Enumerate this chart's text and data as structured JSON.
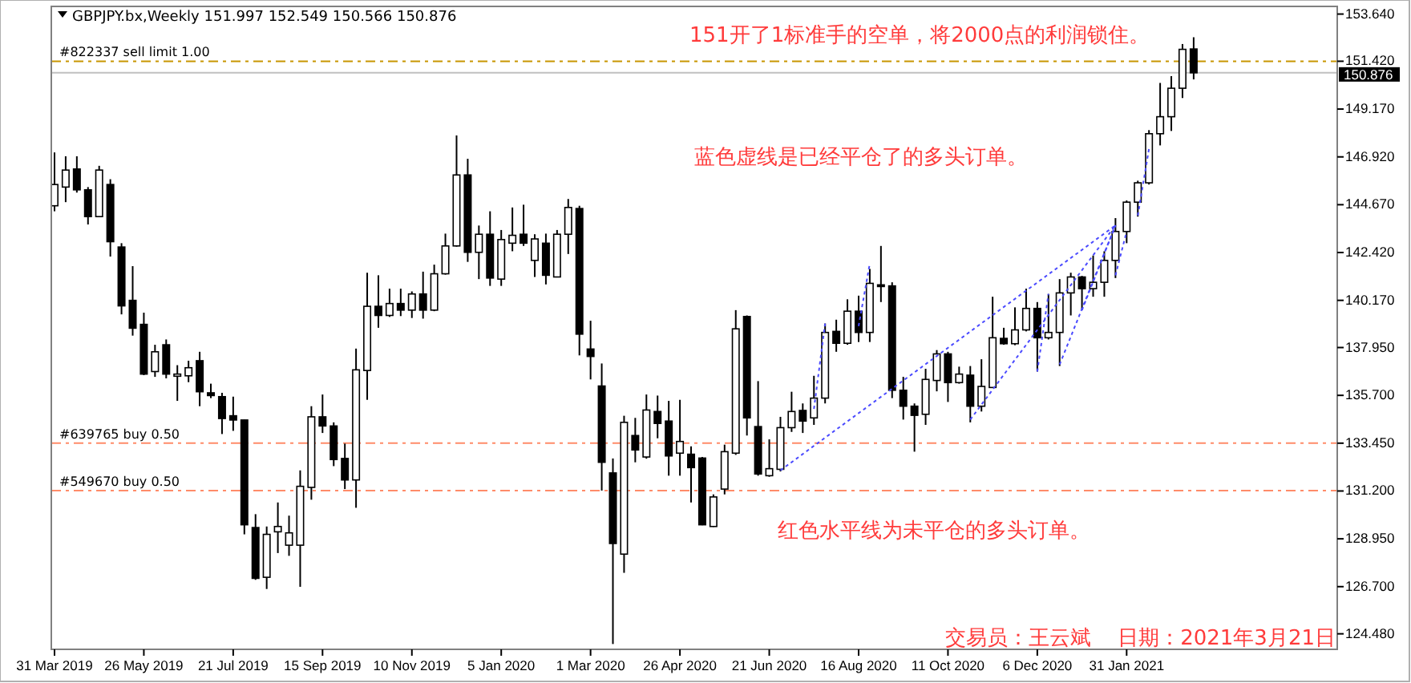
{
  "chart_data": {
    "type": "candlestick",
    "title": "GBPJPY.bx,Weekly 151.997 152.549 150.566 150.876",
    "annotations": [
      "151开了1标准手的空单，将2000点的利润锁住。",
      "蓝色虚线是已经平仓了的多头订单。",
      "红色水平线为未平仓的多头订单。",
      "交易员：王云斌    日期：2021年3月21日"
    ],
    "x": [
      "2019-03-31",
      "2019-04-07",
      "2019-04-14",
      "2019-04-21",
      "2019-04-28",
      "2019-05-05",
      "2019-05-12",
      "2019-05-19",
      "2019-05-26",
      "2019-06-02",
      "2019-06-09",
      "2019-06-16",
      "2019-06-23",
      "2019-06-30",
      "2019-07-07",
      "2019-07-14",
      "2019-07-21",
      "2019-07-28",
      "2019-08-04",
      "2019-08-11",
      "2019-08-18",
      "2019-08-25",
      "2019-09-01",
      "2019-09-08",
      "2019-09-15",
      "2019-09-22",
      "2019-09-29",
      "2019-10-06",
      "2019-10-13",
      "2019-10-20",
      "2019-10-27",
      "2019-11-03",
      "2019-11-10",
      "2019-11-17",
      "2019-11-24",
      "2019-12-01",
      "2019-12-08",
      "2019-12-15",
      "2019-12-22",
      "2019-12-29",
      "2020-01-05",
      "2020-01-12",
      "2020-01-19",
      "2020-01-26",
      "2020-02-02",
      "2020-02-09",
      "2020-02-16",
      "2020-02-23",
      "2020-03-01",
      "2020-03-08",
      "2020-03-15",
      "2020-03-22",
      "2020-03-29",
      "2020-04-05",
      "2020-04-12",
      "2020-04-19",
      "2020-04-26",
      "2020-05-03",
      "2020-05-10",
      "2020-05-17",
      "2020-05-24",
      "2020-05-31",
      "2020-06-07",
      "2020-06-14",
      "2020-06-21",
      "2020-06-28",
      "2020-07-05",
      "2020-07-12",
      "2020-07-19",
      "2020-07-26",
      "2020-08-02",
      "2020-08-09",
      "2020-08-16",
      "2020-08-23",
      "2020-08-30",
      "2020-09-06",
      "2020-09-13",
      "2020-09-20",
      "2020-09-27",
      "2020-10-04",
      "2020-10-11",
      "2020-10-18",
      "2020-10-25",
      "2020-11-01",
      "2020-11-08",
      "2020-11-15",
      "2020-11-22",
      "2020-11-29",
      "2020-12-06",
      "2020-12-13",
      "2020-12-20",
      "2020-12-27",
      "2021-01-03",
      "2021-01-10",
      "2021-01-17",
      "2021-01-24",
      "2021-01-31",
      "2021-02-07",
      "2021-02-14",
      "2021-02-21",
      "2021-02-28",
      "2021-03-07",
      "2021-03-14"
    ],
    "series": [
      {
        "ohlc": [
          [
            144.62,
            147.13,
            144.36,
            145.62
          ],
          [
            145.5,
            146.95,
            144.79,
            146.3
          ],
          [
            146.35,
            146.95,
            145.24,
            145.37
          ],
          [
            145.37,
            145.5,
            143.74,
            144.11
          ],
          [
            144.11,
            146.5,
            144.08,
            146.3
          ],
          [
            145.62,
            145.87,
            142.23,
            142.93
          ],
          [
            142.68,
            142.86,
            139.51,
            139.91
          ],
          [
            140.17,
            141.78,
            138.51,
            138.86
          ],
          [
            139.04,
            139.59,
            136.65,
            136.7
          ],
          [
            136.82,
            138.08,
            136.57,
            137.75
          ],
          [
            138.08,
            138.33,
            136.5,
            136.7
          ],
          [
            136.6,
            137.12,
            135.44,
            136.7
          ],
          [
            136.62,
            137.33,
            136.32,
            137.0
          ],
          [
            137.33,
            137.75,
            135.19,
            135.87
          ],
          [
            135.82,
            136.25,
            135.57,
            135.69
          ],
          [
            135.64,
            135.82,
            133.88,
            134.61
          ],
          [
            134.74,
            135.64,
            134.03,
            134.54
          ],
          [
            134.54,
            134.55,
            129.16,
            129.61
          ],
          [
            129.48,
            130.11,
            127.02,
            127.09
          ],
          [
            127.14,
            129.53,
            126.59,
            129.16
          ],
          [
            129.28,
            130.66,
            128.28,
            129.53
          ],
          [
            128.65,
            130.04,
            128.15,
            129.23
          ],
          [
            128.65,
            132.17,
            126.69,
            131.42
          ],
          [
            131.37,
            135.19,
            130.79,
            134.69
          ],
          [
            134.69,
            135.74,
            133.93,
            134.26
          ],
          [
            134.26,
            134.43,
            132.37,
            132.68
          ],
          [
            132.73,
            133.43,
            131.29,
            131.72
          ],
          [
            131.72,
            137.9,
            130.41,
            136.9
          ],
          [
            136.87,
            141.47,
            135.49,
            139.89
          ],
          [
            139.89,
            141.35,
            138.88,
            139.46
          ],
          [
            139.46,
            140.72,
            139.39,
            140.02
          ],
          [
            140.02,
            140.72,
            139.43,
            139.71
          ],
          [
            139.71,
            140.59,
            139.34,
            140.47
          ],
          [
            140.47,
            141.52,
            139.31,
            139.71
          ],
          [
            139.71,
            141.85,
            139.66,
            141.42
          ],
          [
            141.42,
            143.31,
            141.38,
            142.73
          ],
          [
            142.73,
            147.93,
            142.7,
            146.07
          ],
          [
            146.07,
            146.83,
            141.98,
            142.43
          ],
          [
            142.43,
            143.69,
            141.17,
            143.28
          ],
          [
            143.28,
            144.36,
            140.85,
            141.22
          ],
          [
            141.17,
            143.48,
            140.85,
            143.03
          ],
          [
            142.86,
            144.54,
            142.48,
            143.23
          ],
          [
            143.28,
            144.67,
            142.73,
            142.86
          ],
          [
            142.05,
            143.28,
            141.27,
            143.06
          ],
          [
            142.86,
            143.31,
            140.92,
            141.35
          ],
          [
            141.27,
            143.48,
            141.25,
            143.28
          ],
          [
            143.28,
            144.94,
            142.35,
            144.54
          ],
          [
            144.49,
            144.62,
            137.58,
            138.58
          ],
          [
            137.88,
            139.21,
            136.45,
            137.53
          ],
          [
            136.14,
            137.2,
            131.22,
            132.55
          ],
          [
            132.05,
            132.73,
            124.0,
            128.73
          ],
          [
            128.23,
            134.74,
            127.35,
            134.43
          ],
          [
            133.81,
            134.64,
            132.55,
            133.13
          ],
          [
            132.8,
            135.74,
            132.72,
            135.01
          ],
          [
            134.94,
            135.69,
            133.68,
            134.38
          ],
          [
            134.49,
            135.44,
            131.92,
            132.85
          ],
          [
            132.98,
            135.49,
            131.92,
            133.53
          ],
          [
            132.93,
            133.3,
            130.66,
            132.3
          ],
          [
            132.75,
            132.8,
            129.59,
            129.61
          ],
          [
            129.53,
            131.04,
            129.51,
            130.92
          ],
          [
            131.29,
            133.38,
            131.04,
            133.05
          ],
          [
            132.98,
            139.71,
            132.9,
            138.83
          ],
          [
            139.41,
            139.46,
            133.81,
            134.64
          ],
          [
            134.23,
            136.37,
            131.92,
            132.0
          ],
          [
            131.92,
            133.63,
            131.87,
            132.25
          ],
          [
            132.22,
            134.69,
            132.12,
            134.18
          ],
          [
            134.18,
            135.87,
            133.98,
            134.94
          ],
          [
            134.99,
            135.32,
            133.93,
            134.49
          ],
          [
            134.64,
            136.62,
            134.31,
            135.57
          ],
          [
            135.57,
            139.08,
            135.32,
            138.66
          ],
          [
            138.71,
            139.26,
            137.75,
            138.15
          ],
          [
            138.15,
            140.22,
            138.08,
            139.66
          ],
          [
            139.66,
            140.39,
            138.21,
            138.66
          ],
          [
            138.66,
            141.65,
            138.21,
            140.97
          ],
          [
            140.9,
            142.73,
            140.09,
            140.82
          ],
          [
            140.85,
            141.02,
            135.57,
            135.94
          ],
          [
            135.94,
            136.57,
            134.56,
            135.19
          ],
          [
            135.19,
            135.32,
            133.05,
            134.76
          ],
          [
            134.81,
            136.95,
            134.31,
            136.45
          ],
          [
            136.4,
            137.83,
            135.89,
            137.65
          ],
          [
            137.65,
            137.75,
            135.39,
            136.3
          ],
          [
            136.3,
            137.05,
            136.25,
            136.7
          ],
          [
            136.65,
            137.08,
            134.43,
            135.19
          ],
          [
            135.19,
            137.4,
            134.94,
            136.12
          ],
          [
            136.07,
            140.34,
            136.05,
            138.41
          ],
          [
            138.38,
            138.88,
            138.08,
            138.13
          ],
          [
            138.13,
            139.84,
            138.06,
            138.78
          ],
          [
            138.78,
            140.72,
            138.71,
            139.79
          ],
          [
            139.79,
            140.09,
            136.82,
            138.41
          ],
          [
            138.41,
            140.47,
            138.33,
            138.66
          ],
          [
            138.66,
            141.17,
            137.08,
            140.52
          ],
          [
            140.52,
            141.47,
            139.46,
            141.27
          ],
          [
            141.27,
            141.32,
            139.71,
            140.72
          ],
          [
            140.72,
            142.28,
            140.34,
            141.02
          ],
          [
            141.02,
            142.48,
            140.34,
            142.05
          ],
          [
            142.05,
            144.04,
            141.22,
            143.41
          ],
          [
            143.41,
            144.87,
            142.86,
            144.79
          ],
          [
            144.79,
            145.8,
            144.11,
            145.7
          ],
          [
            145.7,
            148.18,
            145.62,
            148.01
          ],
          [
            148.01,
            150.4,
            147.46,
            148.81
          ],
          [
            148.81,
            150.72,
            148.14,
            150.15
          ],
          [
            150.15,
            152.23,
            149.69,
            151.98
          ],
          [
            151.997,
            152.549,
            150.566,
            150.876
          ]
        ]
      },
      {
        "type": "line",
        "color": "#4a4aff",
        "x": [
          "2020-06-28",
          "2021-01-24"
        ],
        "values": [
          132.17,
          143.7
        ]
      },
      {
        "type": "line",
        "color": "#4a4aff",
        "x": [
          "2020-07-19",
          "2020-07-26"
        ],
        "values": [
          135.06,
          139.08
        ]
      },
      {
        "type": "line",
        "color": "#4a4aff",
        "x": [
          "2020-08-16",
          "2020-08-23"
        ],
        "values": [
          138.96,
          141.9
        ]
      },
      {
        "type": "line",
        "color": "#4a4aff",
        "x": [
          "2020-10-25",
          "2021-01-24"
        ],
        "values": [
          134.56,
          143.7
        ]
      },
      {
        "type": "line",
        "color": "#4a4aff",
        "x": [
          "2020-12-06",
          "2020-12-13"
        ],
        "values": [
          136.82,
          140.47
        ]
      },
      {
        "type": "line",
        "color": "#4a4aff",
        "x": [
          "2020-12-20",
          "2021-01-24"
        ],
        "values": [
          137.15,
          143.7
        ]
      },
      {
        "type": "line",
        "color": "#4a4aff",
        "x": [
          "2021-01-03",
          "2021-01-24"
        ],
        "values": [
          139.71,
          143.7
        ]
      },
      {
        "type": "line",
        "color": "#4a4aff",
        "x": [
          "2021-01-24",
          "2021-01-31"
        ],
        "values": [
          141.35,
          143.41
        ]
      },
      {
        "type": "line",
        "color": "#4a4aff",
        "x": [
          "2021-02-07",
          "2021-02-14"
        ],
        "values": [
          144.16,
          147.3
        ]
      }
    ],
    "line_style": "dotted",
    "xlim": [
      "2019-03-29",
      "2021-06-12"
    ],
    "xticks": [
      {
        "value": "2019-03-31",
        "label": "31 Mar 2019"
      },
      {
        "value": "2019-05-26",
        "label": "26 May 2019"
      },
      {
        "value": "2019-07-21",
        "label": "21 Jul 2019"
      },
      {
        "value": "2019-09-15",
        "label": "15 Sep 2019"
      },
      {
        "value": "2019-11-10",
        "label": "10 Nov 2019"
      },
      {
        "value": "2020-01-05",
        "label": "5 Jan 2020"
      },
      {
        "value": "2020-03-01",
        "label": "1 Mar 2020"
      },
      {
        "value": "2020-04-26",
        "label": "26 Apr 2020"
      },
      {
        "value": "2020-06-21",
        "label": "21 Jun 2020"
      },
      {
        "value": "2020-08-16",
        "label": "16 Aug 2020"
      },
      {
        "value": "2020-10-11",
        "label": "11 Oct 2020"
      },
      {
        "value": "2020-12-06",
        "label": "6 Dec 2020"
      },
      {
        "value": "2021-01-31",
        "label": "31 Jan 2021"
      }
    ],
    "ylim": [
      123.75,
      154.0
    ],
    "yticks": [
      {
        "value": 153.64,
        "label": "153.640"
      },
      {
        "value": 151.42,
        "label": "151.420"
      },
      {
        "value": 149.17,
        "label": "149.170"
      },
      {
        "value": 146.92,
        "label": "146.920"
      },
      {
        "value": 144.67,
        "label": "144.670"
      },
      {
        "value": 142.42,
        "label": "142.420"
      },
      {
        "value": 140.17,
        "label": "140.170"
      },
      {
        "value": 137.95,
        "label": "137.950"
      },
      {
        "value": 135.7,
        "label": "135.700"
      },
      {
        "value": 133.45,
        "label": "133.450"
      },
      {
        "value": 131.2,
        "label": "131.200"
      },
      {
        "value": 128.95,
        "label": "128.950"
      },
      {
        "value": 126.7,
        "label": "126.700"
      },
      {
        "value": 124.48,
        "label": "124.480"
      }
    ],
    "ref_lines": [
      {
        "axis": "y",
        "value": 151.42,
        "label": "#822337 sell limit 1.00",
        "color": "#c89600",
        "line_style": "dashed"
      },
      {
        "axis": "y",
        "value": 133.45,
        "label": "#639765 buy 0.50",
        "color": "#ff8c69",
        "line_style": "dashed"
      },
      {
        "axis": "y",
        "value": 131.22,
        "label": "#549670 buy 0.50",
        "color": "#ff8c69",
        "line_style": "dashed"
      },
      {
        "axis": "y",
        "value": 150.876,
        "label": "150.876",
        "color": "#c0c0c0",
        "line_style": "solid"
      }
    ],
    "grid": false
  }
}
